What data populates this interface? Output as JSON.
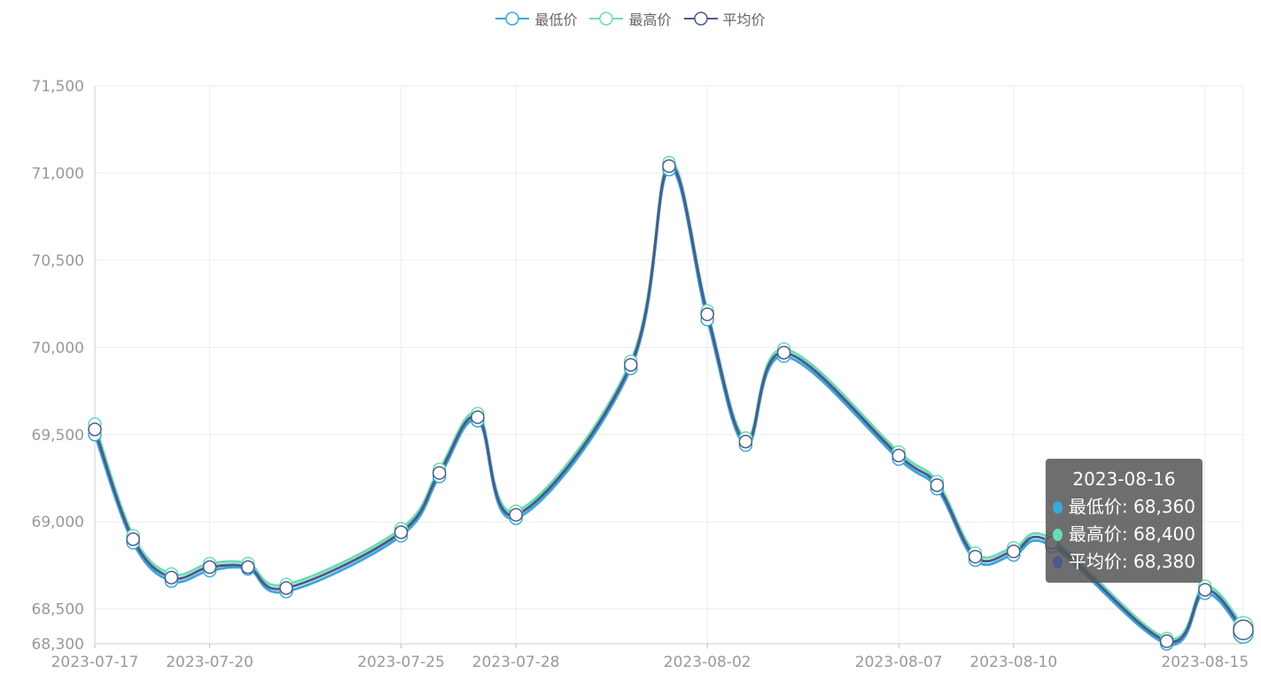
{
  "legend": [
    {
      "name": "最低价",
      "color": "#3ba8d8"
    },
    {
      "name": "最高价",
      "color": "#6bdcb4"
    },
    {
      "name": "平均价",
      "color": "#4d5a8c"
    }
  ],
  "tooltip": {
    "date": "2023-08-16",
    "rows": [
      {
        "label": "最低价: 68,360",
        "color": "#3ba8d8"
      },
      {
        "label": "最高价: 68,400",
        "color": "#6bdcb4"
      },
      {
        "label": "平均价: 68,380",
        "color": "#4d5a8c"
      }
    ]
  },
  "chart_data": {
    "type": "line",
    "smooth": true,
    "grid": true,
    "legend_position": "top-center",
    "x": [
      "2023-07-17",
      "2023-07-18",
      "2023-07-19",
      "2023-07-20",
      "2023-07-21",
      "2023-07-22",
      "2023-07-25",
      "2023-07-26",
      "2023-07-27",
      "2023-07-28",
      "2023-07-31",
      "2023-08-01",
      "2023-08-02",
      "2023-08-03",
      "2023-08-04",
      "2023-08-07",
      "2023-08-08",
      "2023-08-09",
      "2023-08-10",
      "2023-08-11",
      "2023-08-14",
      "2023-08-15",
      "2023-08-16"
    ],
    "xticks": [
      "2023-07-17",
      "2023-07-20",
      "2023-07-25",
      "2023-07-28",
      "2023-08-02",
      "2023-08-07",
      "2023-08-10",
      "2023-08-15"
    ],
    "yticks": [
      68300,
      68500,
      69000,
      69500,
      70000,
      70500,
      71000,
      71500
    ],
    "ylim": [
      68300,
      71500
    ],
    "series": [
      {
        "name": "最低价",
        "color": "#3ba8d8",
        "values": [
          69500,
          68880,
          68660,
          68720,
          68730,
          68600,
          68920,
          69260,
          69580,
          69020,
          69880,
          71020,
          70160,
          69440,
          69950,
          69360,
          69190,
          68780,
          68810,
          68860,
          68300,
          68590,
          68360
        ]
      },
      {
        "name": "最高价",
        "color": "#6bdcb4",
        "values": [
          69560,
          68920,
          68700,
          68760,
          68760,
          68640,
          68960,
          69300,
          69620,
          69060,
          69920,
          71060,
          70210,
          69480,
          69990,
          69400,
          69230,
          68820,
          68850,
          68900,
          68330,
          68630,
          68400
        ]
      },
      {
        "name": "平均价",
        "color": "#4d5a8c",
        "values": [
          69530,
          68900,
          68680,
          68740,
          68740,
          68620,
          68940,
          69280,
          69600,
          69040,
          69900,
          71040,
          70190,
          69460,
          69970,
          69380,
          69210,
          68800,
          68830,
          68880,
          68315,
          68610,
          68380
        ]
      }
    ]
  }
}
